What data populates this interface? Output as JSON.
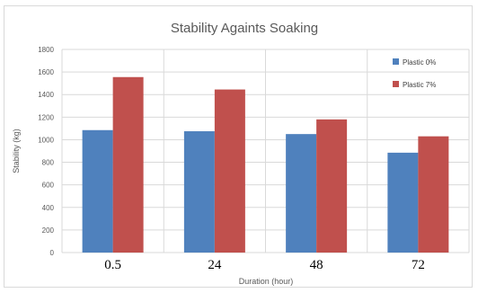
{
  "chart_data": {
    "type": "bar",
    "title": "Stability Againts Soaking",
    "xlabel": "Duration (hour)",
    "ylabel": "Stability (kg)",
    "categories": [
      "0.5",
      "24",
      "48",
      "72"
    ],
    "series": [
      {
        "name": "Plastic 0%",
        "values": [
          1085,
          1075,
          1050,
          885
        ],
        "color": "#4f81bd"
      },
      {
        "name": "Plastic 7%",
        "values": [
          1555,
          1445,
          1180,
          1030
        ],
        "color": "#c0504d"
      }
    ],
    "ylim": [
      0,
      1800
    ],
    "yticks": [
      0,
      200,
      400,
      600,
      800,
      1000,
      1200,
      1400,
      1600,
      1800
    ],
    "grid": true,
    "legend_position": "top-right"
  }
}
